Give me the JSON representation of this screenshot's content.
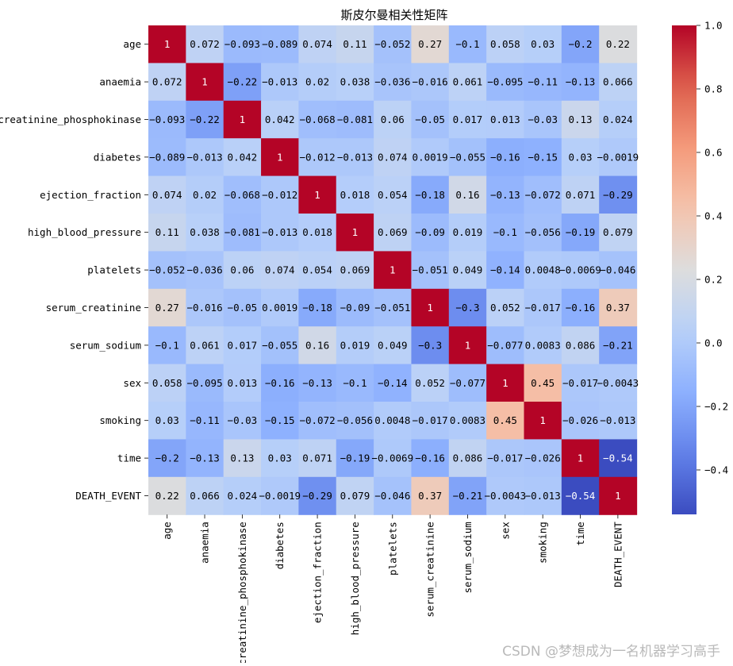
{
  "chart_data": {
    "type": "heatmap",
    "title": "斯皮尔曼相关性矩阵",
    "variables": [
      "age",
      "anaemia",
      "creatinine_phosphokinase",
      "diabetes",
      "ejection_fraction",
      "high_blood_pressure",
      "platelets",
      "serum_creatinine",
      "serum_sodium",
      "sex",
      "smoking",
      "time",
      "DEATH_EVENT"
    ],
    "matrix": [
      [
        1,
        0.072,
        -0.093,
        -0.089,
        0.074,
        0.11,
        -0.052,
        0.27,
        -0.1,
        0.058,
        0.03,
        -0.2,
        0.22
      ],
      [
        0.072,
        1,
        -0.22,
        -0.013,
        0.02,
        0.038,
        -0.036,
        -0.016,
        0.061,
        -0.095,
        -0.11,
        -0.13,
        0.066
      ],
      [
        -0.093,
        -0.22,
        1,
        0.042,
        -0.068,
        -0.081,
        0.06,
        -0.05,
        0.017,
        0.013,
        -0.03,
        0.13,
        0.024
      ],
      [
        -0.089,
        -0.013,
        0.042,
        1,
        -0.012,
        -0.013,
        0.074,
        0.0019,
        -0.055,
        -0.16,
        -0.15,
        0.03,
        -0.0019
      ],
      [
        0.074,
        0.02,
        -0.068,
        -0.012,
        1,
        0.018,
        0.054,
        -0.18,
        0.16,
        -0.13,
        -0.072,
        0.071,
        -0.29
      ],
      [
        0.11,
        0.038,
        -0.081,
        -0.013,
        0.018,
        1,
        0.069,
        -0.09,
        0.019,
        -0.1,
        -0.056,
        -0.19,
        0.079
      ],
      [
        -0.052,
        -0.036,
        0.06,
        0.074,
        0.054,
        0.069,
        1,
        -0.051,
        0.049,
        -0.14,
        0.0048,
        -0.0069,
        -0.046
      ],
      [
        0.27,
        -0.016,
        -0.05,
        0.0019,
        -0.18,
        -0.09,
        -0.051,
        1,
        -0.3,
        0.052,
        -0.017,
        -0.16,
        0.37
      ],
      [
        -0.1,
        0.061,
        0.017,
        -0.055,
        0.16,
        0.019,
        0.049,
        -0.3,
        1,
        -0.077,
        0.0083,
        0.086,
        -0.21
      ],
      [
        0.058,
        -0.095,
        0.013,
        -0.16,
        -0.13,
        -0.1,
        -0.14,
        0.052,
        -0.077,
        1,
        0.45,
        -0.017,
        -0.0043
      ],
      [
        0.03,
        -0.11,
        -0.03,
        -0.15,
        -0.072,
        -0.056,
        0.0048,
        -0.017,
        0.0083,
        0.45,
        1,
        -0.026,
        -0.013
      ],
      [
        -0.2,
        -0.13,
        0.13,
        0.03,
        0.071,
        -0.19,
        -0.0069,
        -0.16,
        0.086,
        -0.017,
        -0.026,
        1,
        -0.54
      ],
      [
        0.22,
        0.066,
        0.024,
        -0.0019,
        -0.29,
        0.079,
        -0.046,
        0.37,
        -0.21,
        -0.0043,
        -0.013,
        -0.54,
        1
      ]
    ],
    "colormap": "coolwarm",
    "vmin": -0.54,
    "vmax": 1.0,
    "colorbar": {
      "ticks": [
        -0.4,
        -0.2,
        0.0,
        0.2,
        0.4,
        0.6,
        0.8,
        1.0
      ],
      "tick_labels": [
        "−0.4",
        "−0.2",
        "0.0",
        "0.2",
        "0.4",
        "0.6",
        "0.8",
        "1.0"
      ]
    },
    "annotate": true,
    "xlabel": "",
    "ylabel": ""
  },
  "watermark": "CSDN @梦想成为一名机器学习高手"
}
